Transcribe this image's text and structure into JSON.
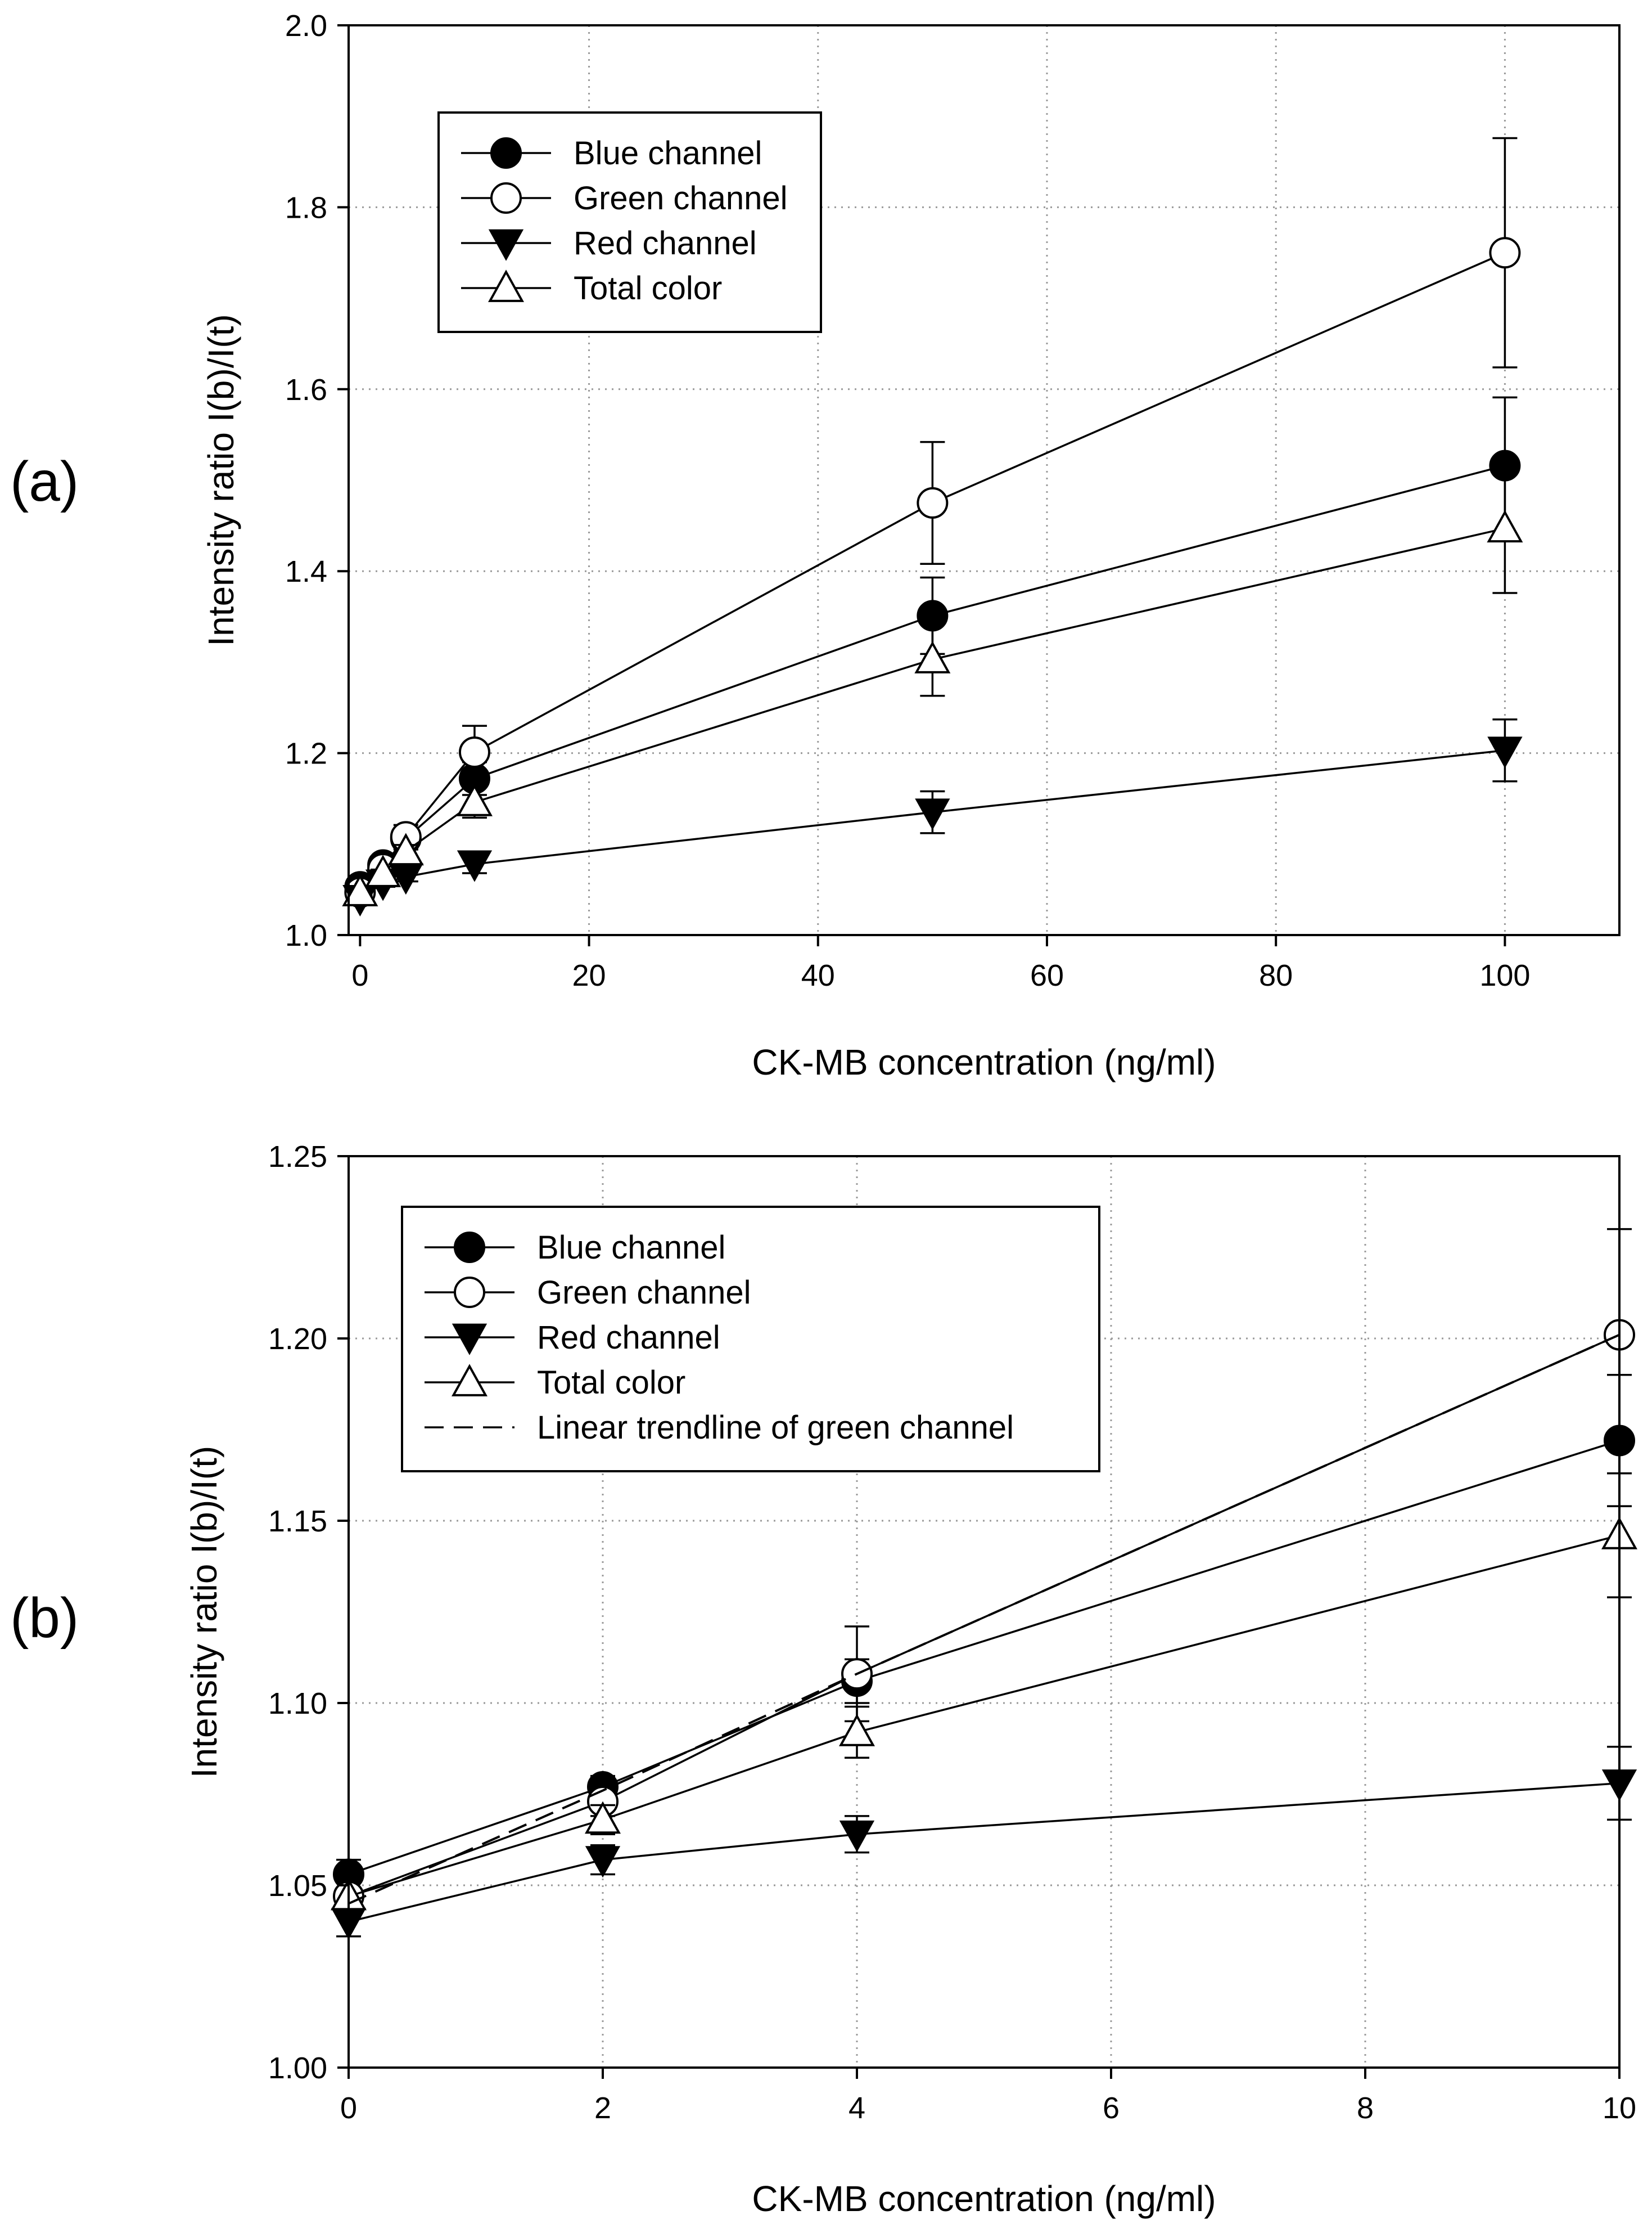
{
  "chart_data": [
    {
      "panel": "(a)",
      "type": "line",
      "xlabel": "CK-MB concentration (ng/ml)",
      "ylabel": "Intensity ratio I(b)/I(t)",
      "xlim": [
        -1,
        110
      ],
      "ylim": [
        1.0,
        2.0
      ],
      "xticks": [
        0,
        20,
        40,
        60,
        80,
        100
      ],
      "yticks": [
        1.0,
        1.2,
        1.4,
        1.6,
        1.8,
        2.0
      ],
      "xtick_labels": [
        "0",
        "20",
        "40",
        "60",
        "80",
        "100"
      ],
      "ytick_labels": [
        "1.0",
        "1.2",
        "1.4",
        "1.6",
        "1.8",
        "2.0"
      ],
      "grid": true,
      "legend_position": "top-left",
      "x": [
        0,
        2,
        4,
        10,
        50,
        100
      ],
      "series": [
        {
          "name": "Blue channel",
          "marker": "filled-circle",
          "values": [
            1.053,
            1.077,
            1.106,
            1.172,
            1.351,
            1.516
          ],
          "errors": [
            0.005,
            0.004,
            0.012,
            0.018,
            0.042,
            0.075
          ]
        },
        {
          "name": "Green channel",
          "marker": "open-circle",
          "values": [
            1.047,
            1.073,
            1.108,
            1.201,
            1.475,
            1.75
          ],
          "errors": [
            0.004,
            0.004,
            0.013,
            0.029,
            0.067,
            0.126
          ]
        },
        {
          "name": "Red channel",
          "marker": "filled-triangle-down",
          "values": [
            1.04,
            1.057,
            1.064,
            1.078,
            1.135,
            1.203
          ],
          "errors": [
            0.004,
            0.004,
            0.005,
            0.01,
            0.023,
            0.034
          ]
        },
        {
          "name": "Total color",
          "marker": "open-triangle-up",
          "values": [
            1.047,
            1.068,
            1.092,
            1.146,
            1.303,
            1.447
          ],
          "errors": [
            0.004,
            0.004,
            0.007,
            0.017,
            0.04,
            0.071
          ]
        }
      ]
    },
    {
      "panel": "(b)",
      "type": "line",
      "xlabel": "CK-MB concentration (ng/ml)",
      "ylabel": "Intensity ratio I(b)/I(t)",
      "xlim": [
        0,
        10
      ],
      "ylim": [
        1.0,
        1.25
      ],
      "xticks": [
        0,
        2,
        4,
        6,
        8,
        10
      ],
      "yticks": [
        1.0,
        1.05,
        1.1,
        1.15,
        1.2,
        1.25
      ],
      "xtick_labels": [
        "0",
        "2",
        "4",
        "6",
        "8",
        "10"
      ],
      "ytick_labels": [
        "1.00",
        "1.05",
        "1.10",
        "1.15",
        "1.20",
        "1.25"
      ],
      "grid": true,
      "legend_position": "top-left",
      "x": [
        0,
        2,
        4,
        10
      ],
      "series": [
        {
          "name": "Blue channel",
          "marker": "filled-circle",
          "values": [
            1.053,
            1.077,
            1.106,
            1.172
          ],
          "errors": [
            0.004,
            0.003,
            0.006,
            0.018
          ]
        },
        {
          "name": "Green channel",
          "marker": "open-circle",
          "values": [
            1.047,
            1.073,
            1.108,
            1.201
          ],
          "errors": [
            0.004,
            0.004,
            0.013,
            0.029
          ]
        },
        {
          "name": "Red channel",
          "marker": "filled-triangle-down",
          "values": [
            1.04,
            1.057,
            1.064,
            1.078
          ],
          "errors": [
            0.004,
            0.004,
            0.005,
            0.01
          ]
        },
        {
          "name": "Total color",
          "marker": "open-triangle-up",
          "values": [
            1.047,
            1.068,
            1.092,
            1.146
          ],
          "errors": [
            0.004,
            0.004,
            0.007,
            0.017
          ]
        },
        {
          "name": "Linear trendline of green channel",
          "marker": "none",
          "dashed": true,
          "values": [
            1.045,
            1.076,
            1.108,
            1.201
          ]
        }
      ]
    }
  ]
}
